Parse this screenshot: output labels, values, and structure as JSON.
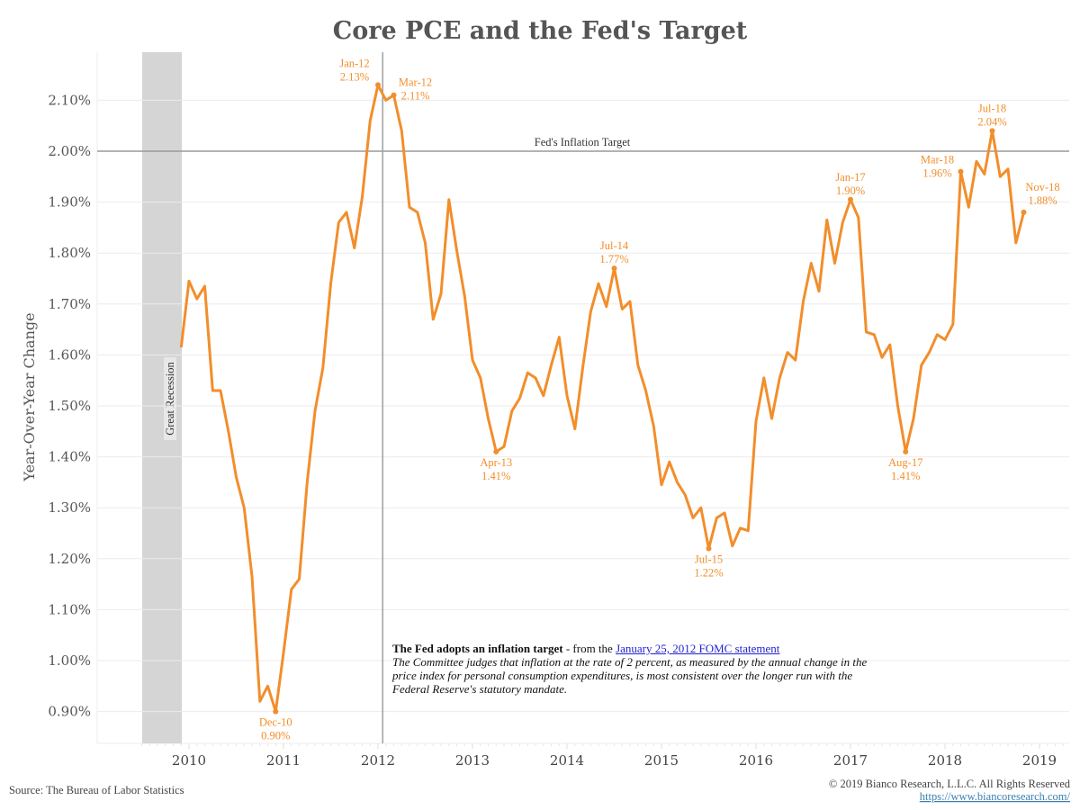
{
  "chart_data": {
    "type": "line",
    "title": "Core PCE and the Fed's Target",
    "xlabel": "",
    "ylabel": "Year-Over-Year Change",
    "ylim": [
      0.84,
      2.2
    ],
    "xlim": [
      2008.95,
      2019.25
    ],
    "y_ticks": [
      {
        "value": 0.9,
        "label": "0.90%"
      },
      {
        "value": 1.0,
        "label": "1.00%"
      },
      {
        "value": 1.1,
        "label": "1.10%"
      },
      {
        "value": 1.2,
        "label": "1.20%"
      },
      {
        "value": 1.3,
        "label": "1.30%"
      },
      {
        "value": 1.4,
        "label": "1.40%"
      },
      {
        "value": 1.5,
        "label": "1.50%"
      },
      {
        "value": 1.6,
        "label": "1.60%"
      },
      {
        "value": 1.7,
        "label": "1.70%"
      },
      {
        "value": 1.8,
        "label": "1.80%"
      },
      {
        "value": 1.9,
        "label": "1.90%"
      },
      {
        "value": 2.0,
        "label": "2.00%"
      },
      {
        "value": 2.1,
        "label": "2.10%"
      }
    ],
    "x_ticks": [
      {
        "value": 2010,
        "label": "2010"
      },
      {
        "value": 2011,
        "label": "2011"
      },
      {
        "value": 2012,
        "label": "2012"
      },
      {
        "value": 2013,
        "label": "2013"
      },
      {
        "value": 2014,
        "label": "2014"
      },
      {
        "value": 2015,
        "label": "2015"
      },
      {
        "value": 2016,
        "label": "2016"
      },
      {
        "value": 2017,
        "label": "2017"
      },
      {
        "value": 2018,
        "label": "2018"
      },
      {
        "value": 2019,
        "label": "2019"
      }
    ],
    "grid": true,
    "series": [
      {
        "name": "Core PCE YoY",
        "color": "#f28e2b",
        "start": "Dec-09",
        "values": [
          1.615,
          1.745,
          1.71,
          1.735,
          1.53,
          1.53,
          1.45,
          1.36,
          1.3,
          1.165,
          0.92,
          0.95,
          0.9,
          1.015,
          1.14,
          1.16,
          1.35,
          1.49,
          1.575,
          1.74,
          1.86,
          1.88,
          1.81,
          1.91,
          2.06,
          2.13,
          2.1,
          2.11,
          2.04,
          1.89,
          1.88,
          1.82,
          1.67,
          1.72,
          1.905,
          1.805,
          1.715,
          1.59,
          1.555,
          1.475,
          1.41,
          1.42,
          1.49,
          1.515,
          1.565,
          1.555,
          1.52,
          1.58,
          1.635,
          1.52,
          1.455,
          1.575,
          1.685,
          1.74,
          1.695,
          1.77,
          1.69,
          1.705,
          1.58,
          1.53,
          1.46,
          1.345,
          1.39,
          1.35,
          1.325,
          1.28,
          1.3,
          1.22,
          1.28,
          1.29,
          1.225,
          1.26,
          1.255,
          1.47,
          1.555,
          1.475,
          1.555,
          1.605,
          1.59,
          1.705,
          1.78,
          1.725,
          1.865,
          1.78,
          1.86,
          1.905,
          1.87,
          1.645,
          1.64,
          1.595,
          1.62,
          1.5,
          1.41,
          1.475,
          1.58,
          1.605,
          1.64,
          1.63,
          1.66,
          1.96,
          1.89,
          1.98,
          1.955,
          2.04,
          1.95,
          1.965,
          1.82,
          1.88
        ]
      }
    ],
    "reference_line": {
      "value": 2.0,
      "label": "Fed's Inflation Target",
      "color": "#999999"
    },
    "event_line": {
      "date": 2012.04,
      "label": "Jan 25, 2012"
    },
    "shaded_region": {
      "from": 2009.5,
      "to": 2009.92,
      "label": "Great Recession",
      "color": "#d5d5d5"
    },
    "point_labels": [
      {
        "index": 12,
        "date": "Dec-10",
        "value": "0.90%",
        "pos": "below"
      },
      {
        "index": 25,
        "date": "Jan-12",
        "value": "2.13%",
        "pos": "above-left"
      },
      {
        "index": 27,
        "date": "Mar-12",
        "value": "2.11%",
        "pos": "right"
      },
      {
        "index": 40,
        "date": "Apr-13",
        "value": "1.41%",
        "pos": "below"
      },
      {
        "index": 55,
        "date": "Jul-14",
        "value": "1.77%",
        "pos": "above"
      },
      {
        "index": 67,
        "date": "Jul-15",
        "value": "1.22%",
        "pos": "below"
      },
      {
        "index": 85,
        "date": "Jan-17",
        "value": "1.90%",
        "pos": "above"
      },
      {
        "index": 92,
        "date": "Aug-17",
        "value": "1.41%",
        "pos": "below"
      },
      {
        "index": 99,
        "date": "Mar-18",
        "value": "1.96%",
        "pos": "left"
      },
      {
        "index": 103,
        "date": "Jul-18",
        "value": "2.04%",
        "pos": "above"
      },
      {
        "index": 107,
        "date": "Nov-18",
        "value": "1.88%",
        "pos": "right"
      }
    ]
  },
  "note": {
    "heading": "The Fed adopts an inflation target",
    "connector": " - from the ",
    "link_text": "January 25, 2012 FOMC statement",
    "body": "The Committee judges that inflation at the rate of 2 percent, as measured by the annual change in the price index for personal consumption expenditures, is most consistent over the longer run with the Federal Reserve's statutory mandate."
  },
  "footer": {
    "source": "Source: The Bureau of Labor Statistics",
    "copyright": "© 2019 Bianco Research, L.L.C. All Rights Reserved",
    "url": "https://www.biancoresearch.com/"
  }
}
